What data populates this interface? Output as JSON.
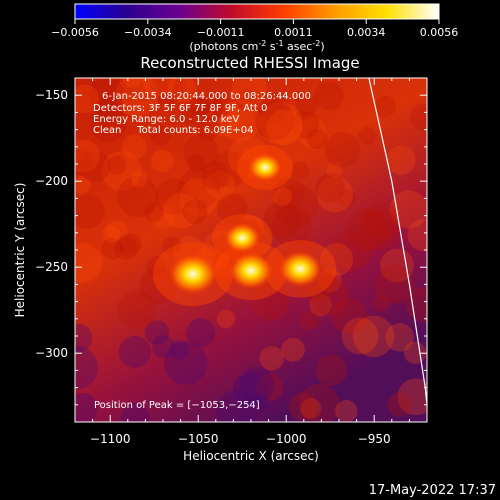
{
  "colorbar": {
    "ticks": [
      "-0.0056",
      "-0.0034",
      "-0.0011",
      "0.0011",
      "0.0034",
      "0.0056"
    ],
    "units_prefix": "(photons cm",
    "units_sup1": "-2",
    "units_mid": " s",
    "units_sup2": "-1",
    "units_mid2": " asec",
    "units_sup3": "-2",
    "units_suffix": ")",
    "colors": [
      "#0000ff",
      "#2b008f",
      "#6a0090",
      "#c00a2a",
      "#ff3d00",
      "#ff9b00",
      "#ffe000",
      "#ffffff"
    ]
  },
  "chart_data": {
    "type": "heatmap",
    "title": "Reconstructed RHESSI Image",
    "xlabel": "Heliocentric X (arcsec)",
    "ylabel": "Heliocentric Y (arcsec)",
    "xlim": [
      -1120,
      -920
    ],
    "ylim": [
      -340,
      -140
    ],
    "xticks": [
      -1100,
      -1050,
      -1000,
      -950
    ],
    "xtick_labels": [
      "−1100",
      "−1050",
      "−1000",
      "−950"
    ],
    "yticks": [
      -150,
      -200,
      -250,
      -300
    ],
    "ytick_labels": [
      "−150",
      "−200",
      "−250",
      "−300"
    ],
    "color_range": [
      -0.0056,
      0.0056
    ],
    "sources": [
      {
        "x": -1053,
        "y": -254,
        "level": 1.0
      },
      {
        "x": -1020,
        "y": -252,
        "level": 0.92
      },
      {
        "x": -992,
        "y": -251,
        "level": 0.9
      },
      {
        "x": -1025,
        "y": -233,
        "level": 0.75
      },
      {
        "x": -1012,
        "y": -192,
        "level": 0.7
      }
    ],
    "limb": [
      [
        -953,
        -140
      ],
      [
        -940,
        -200
      ],
      [
        -930,
        -260
      ],
      [
        -921,
        -320
      ],
      [
        -919,
        -340
      ]
    ],
    "info_lines": [
      "6-Jan-2015 08:20:44.000 to 08:26:44.000",
      "Detectors: 3F 5F 6F 7F 8F 9F, Att 0",
      "Energy Range: 6.0 - 12.0 keV",
      "Clean     Total counts: 6.09E+04"
    ],
    "peak_label": "Position of Peak = [−1053,−254]"
  },
  "footer": {
    "timestamp": "17-May-2022 17:37"
  }
}
